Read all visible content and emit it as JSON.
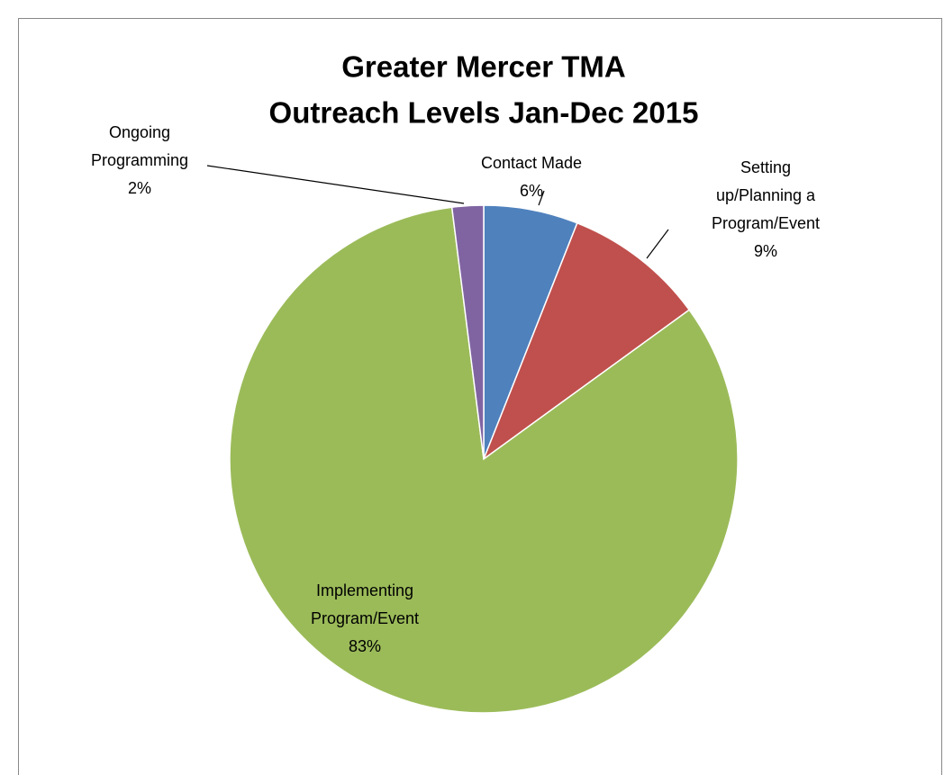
{
  "chart_data": {
    "type": "pie",
    "title": [
      "Greater Mercer TMA",
      "Outreach Levels Jan-Dec 2015"
    ],
    "categories": [
      "Contact Made",
      "Setting up/Planning a Program/Event",
      "Implementing Program/Event",
      "Ongoing Programming"
    ],
    "values": [
      6,
      9,
      83,
      2
    ],
    "value_labels": [
      "6%",
      "9%",
      "83%",
      "2%"
    ],
    "colors": [
      "#4f81bd",
      "#c0504d",
      "#9bbb59",
      "#8064a2"
    ]
  }
}
